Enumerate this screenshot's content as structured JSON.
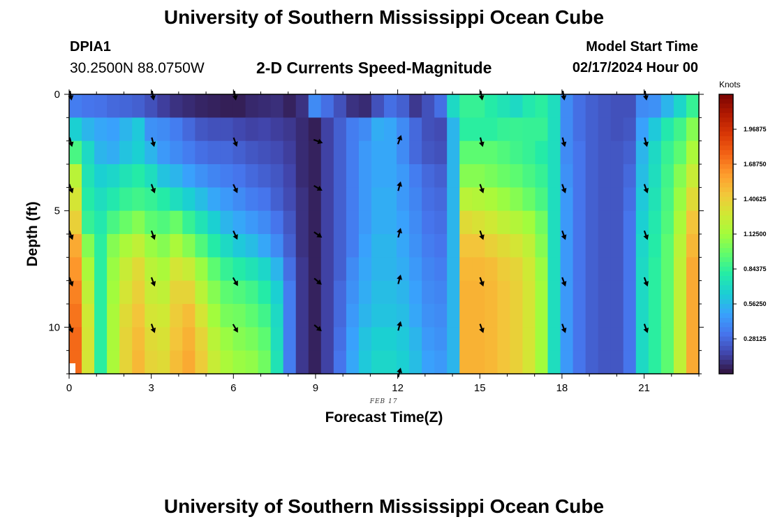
{
  "header": {
    "title": "University of Southern Mississippi Ocean Cube",
    "station_id": "DPIA1",
    "coordinates": "30.2500N  88.0750W",
    "subtitle": "2-D Currents Speed-Magnitude",
    "model_start_label": "Model Start Time",
    "model_start_value": "02/17/2024 Hour 00"
  },
  "footer": {
    "title": "University of Southern Mississippi Ocean Cube"
  },
  "colors": {
    "stops": [
      "#30123b",
      "#4145ab",
      "#4675ed",
      "#39a2fc",
      "#1bcfd4",
      "#24eca6",
      "#61fc6c",
      "#a4fc3b",
      "#d1e834",
      "#f3c63a",
      "#fe9b2d",
      "#f36315",
      "#d93806",
      "#b11901",
      "#7a0403"
    ],
    "frame": "#000000",
    "arrow": "#000000"
  },
  "chart_data": {
    "type": "heatmap",
    "title": "2-D Currents Speed-Magnitude",
    "xlabel": "Forecast Time(Z)",
    "ylabel": "Depth (ft)",
    "date_label": "FEB 17",
    "x_ticks": [
      "0",
      "3",
      "6",
      "9",
      "12",
      "15",
      "18",
      "21"
    ],
    "x_tick_values": [
      0,
      3,
      6,
      9,
      12,
      15,
      18,
      21
    ],
    "xlim": [
      0,
      23
    ],
    "y_ticks": [
      "0",
      "5",
      "10"
    ],
    "y_tick_values": [
      0,
      5,
      10
    ],
    "ylim": [
      0,
      12
    ],
    "depth_levels": [
      0,
      1,
      2,
      3,
      4,
      5,
      6,
      7,
      8,
      9,
      10,
      11
    ],
    "colorbar": {
      "units": "Knots",
      "labels": [
        "1.96875",
        "1.68750",
        "1.40625",
        "1.12500",
        "0.84375",
        "0.56250",
        "0.28125"
      ],
      "label_values": [
        1.96875,
        1.6875,
        1.40625,
        1.125,
        0.84375,
        0.5625,
        0.28125
      ],
      "range": [
        0,
        2.25
      ]
    },
    "speed_knots": [
      [
        0.35,
        0.32,
        0.31,
        0.28,
        0.27,
        0.25,
        0.2,
        0.14,
        0.1,
        0.08,
        0.06,
        0.05,
        0.04,
        0.04,
        0.07,
        0.08,
        0.09,
        0.05,
        0.1,
        0.4,
        0.3,
        0.2,
        0.1,
        0.08,
        0.2,
        0.3,
        0.25,
        0.12,
        0.2,
        0.3,
        0.7,
        0.85,
        0.85,
        0.8,
        0.75,
        0.7,
        0.78,
        0.82,
        0.72,
        0.4,
        0.3,
        0.25,
        0.22,
        0.2,
        0.2,
        0.4,
        0.42,
        0.55,
        0.68,
        0.85
      ],
      [
        0.65,
        0.55,
        0.5,
        0.48,
        0.55,
        0.62,
        0.42,
        0.4,
        0.35,
        0.28,
        0.22,
        0.2,
        0.2,
        0.17,
        0.15,
        0.16,
        0.14,
        0.12,
        0.08,
        0.04,
        0.15,
        0.25,
        0.35,
        0.4,
        0.52,
        0.5,
        0.4,
        0.28,
        0.2,
        0.18,
        0.55,
        0.82,
        0.82,
        0.82,
        0.85,
        0.86,
        0.85,
        0.85,
        0.72,
        0.4,
        0.3,
        0.25,
        0.22,
        0.2,
        0.22,
        0.48,
        0.62,
        0.78,
        0.88,
        1.05
      ],
      [
        0.9,
        0.7,
        0.55,
        0.52,
        0.6,
        0.65,
        0.55,
        0.45,
        0.4,
        0.35,
        0.3,
        0.28,
        0.28,
        0.25,
        0.22,
        0.2,
        0.18,
        0.14,
        0.08,
        0.05,
        0.15,
        0.25,
        0.35,
        0.45,
        0.5,
        0.5,
        0.4,
        0.28,
        0.22,
        0.2,
        0.55,
        0.95,
        0.95,
        0.95,
        0.92,
        0.88,
        0.85,
        0.8,
        0.72,
        0.4,
        0.32,
        0.25,
        0.22,
        0.22,
        0.25,
        0.55,
        0.7,
        0.85,
        0.95,
        1.15
      ],
      [
        1.2,
        0.75,
        0.65,
        0.68,
        0.75,
        0.8,
        0.72,
        0.6,
        0.55,
        0.48,
        0.42,
        0.38,
        0.35,
        0.32,
        0.28,
        0.25,
        0.22,
        0.16,
        0.08,
        0.05,
        0.15,
        0.25,
        0.35,
        0.45,
        0.5,
        0.5,
        0.45,
        0.35,
        0.28,
        0.25,
        0.55,
        1.05,
        1.05,
        1.02,
        0.98,
        0.95,
        0.9,
        0.85,
        0.72,
        0.42,
        0.32,
        0.25,
        0.22,
        0.22,
        0.28,
        0.58,
        0.72,
        0.88,
        1.05,
        1.25
      ],
      [
        1.3,
        0.8,
        0.72,
        0.78,
        0.85,
        0.88,
        0.85,
        0.8,
        0.72,
        0.65,
        0.58,
        0.5,
        0.45,
        0.4,
        0.35,
        0.32,
        0.25,
        0.18,
        0.1,
        0.05,
        0.15,
        0.25,
        0.35,
        0.45,
        0.52,
        0.52,
        0.45,
        0.38,
        0.3,
        0.28,
        0.55,
        1.2,
        1.18,
        1.15,
        1.1,
        1.05,
        0.98,
        0.9,
        0.72,
        0.45,
        0.32,
        0.25,
        0.22,
        0.22,
        0.3,
        0.62,
        0.75,
        0.9,
        1.1,
        1.35
      ],
      [
        1.4,
        0.85,
        0.78,
        0.9,
        0.98,
        1.05,
        0.95,
        0.92,
        0.98,
        0.85,
        0.75,
        0.65,
        0.55,
        0.5,
        0.45,
        0.4,
        0.32,
        0.22,
        0.1,
        0.05,
        0.15,
        0.25,
        0.35,
        0.45,
        0.52,
        0.52,
        0.48,
        0.4,
        0.32,
        0.3,
        0.55,
        1.35,
        1.32,
        1.28,
        1.22,
        1.18,
        1.12,
        1.0,
        0.72,
        0.45,
        0.32,
        0.25,
        0.22,
        0.22,
        0.32,
        0.65,
        0.78,
        0.92,
        1.15,
        1.45
      ],
      [
        1.55,
        1.05,
        0.82,
        1.05,
        1.15,
        1.22,
        1.1,
        1.05,
        1.15,
        1.05,
        0.92,
        0.8,
        0.7,
        0.62,
        0.58,
        0.5,
        0.4,
        0.25,
        0.1,
        0.05,
        0.15,
        0.25,
        0.35,
        0.48,
        0.55,
        0.55,
        0.5,
        0.42,
        0.35,
        0.32,
        0.55,
        1.45,
        1.45,
        1.4,
        1.35,
        1.3,
        1.22,
        1.05,
        0.72,
        0.45,
        0.32,
        0.25,
        0.22,
        0.22,
        0.32,
        0.68,
        0.8,
        0.95,
        1.2,
        1.5
      ],
      [
        1.62,
        1.15,
        0.82,
        1.1,
        1.25,
        1.35,
        1.2,
        1.15,
        1.3,
        1.25,
        1.1,
        0.95,
        0.85,
        0.8,
        0.75,
        0.68,
        0.55,
        0.3,
        0.12,
        0.05,
        0.15,
        0.25,
        0.4,
        0.5,
        0.55,
        0.55,
        0.52,
        0.45,
        0.38,
        0.35,
        0.55,
        1.5,
        1.5,
        1.48,
        1.42,
        1.38,
        1.28,
        1.1,
        0.72,
        0.45,
        0.32,
        0.25,
        0.22,
        0.22,
        0.32,
        0.7,
        0.82,
        0.95,
        1.22,
        1.55
      ],
      [
        1.68,
        1.22,
        0.82,
        1.12,
        1.3,
        1.4,
        1.25,
        1.22,
        1.38,
        1.38,
        1.2,
        1.05,
        0.95,
        0.92,
        0.88,
        0.8,
        0.65,
        0.35,
        0.12,
        0.05,
        0.15,
        0.28,
        0.42,
        0.52,
        0.58,
        0.58,
        0.55,
        0.48,
        0.4,
        0.38,
        0.55,
        1.52,
        1.52,
        1.5,
        1.45,
        1.4,
        1.3,
        1.12,
        0.72,
        0.45,
        0.32,
        0.25,
        0.22,
        0.22,
        0.32,
        0.7,
        0.82,
        0.95,
        1.22,
        1.55
      ],
      [
        1.72,
        1.28,
        0.82,
        1.15,
        1.35,
        1.45,
        1.3,
        1.28,
        1.42,
        1.48,
        1.3,
        1.12,
        1.02,
        1.0,
        0.95,
        0.88,
        0.7,
        0.35,
        0.12,
        0.05,
        0.15,
        0.28,
        0.45,
        0.55,
        0.6,
        0.6,
        0.58,
        0.5,
        0.42,
        0.4,
        0.55,
        1.52,
        1.52,
        1.5,
        1.45,
        1.4,
        1.3,
        1.12,
        0.72,
        0.45,
        0.32,
        0.25,
        0.22,
        0.22,
        0.32,
        0.7,
        0.82,
        0.95,
        1.22,
        1.55
      ],
      [
        1.75,
        1.3,
        0.82,
        1.15,
        1.38,
        1.48,
        1.35,
        1.32,
        1.45,
        1.52,
        1.38,
        1.2,
        1.1,
        1.05,
        1.02,
        0.95,
        0.72,
        0.35,
        0.12,
        0.05,
        0.15,
        0.3,
        0.48,
        0.6,
        0.65,
        0.65,
        0.62,
        0.55,
        0.45,
        0.42,
        0.55,
        1.52,
        1.52,
        1.5,
        1.45,
        1.4,
        1.3,
        1.12,
        0.72,
        0.45,
        0.32,
        0.25,
        0.22,
        0.22,
        0.32,
        0.7,
        0.82,
        0.95,
        1.22,
        1.55
      ],
      [
        1.75,
        1.3,
        0.82,
        1.15,
        1.38,
        1.5,
        1.38,
        1.35,
        1.48,
        1.55,
        1.42,
        1.25,
        1.15,
        1.1,
        1.08,
        1.0,
        0.75,
        0.35,
        0.12,
        0.05,
        0.15,
        0.32,
        0.5,
        0.62,
        0.68,
        0.68,
        0.65,
        0.58,
        0.48,
        0.45,
        0.55,
        1.52,
        1.52,
        1.5,
        1.45,
        1.4,
        1.3,
        1.12,
        0.72,
        0.45,
        0.32,
        0.25,
        0.22,
        0.22,
        0.32,
        0.7,
        0.82,
        0.95,
        1.22,
        1.55
      ]
    ],
    "blank_cell": {
      "row": 11,
      "col": 0
    },
    "vector_times": [
      0,
      3,
      6,
      9,
      12,
      15,
      18,
      21
    ],
    "vector_depths": [
      0,
      2,
      4,
      6,
      8,
      10,
      12
    ],
    "vector_direction_deg": [
      [
        170,
        170,
        170,
        null,
        null,
        170,
        170,
        170
      ],
      [
        165,
        165,
        160,
        110,
        20,
        165,
        165,
        165
      ],
      [
        160,
        160,
        155,
        120,
        15,
        160,
        160,
        160
      ],
      [
        160,
        160,
        155,
        125,
        15,
        160,
        160,
        160
      ],
      [
        160,
        160,
        150,
        130,
        15,
        160,
        160,
        160
      ],
      [
        160,
        160,
        150,
        130,
        15,
        160,
        160,
        160
      ],
      [
        null,
        null,
        null,
        null,
        15,
        null,
        null,
        null
      ]
    ]
  }
}
